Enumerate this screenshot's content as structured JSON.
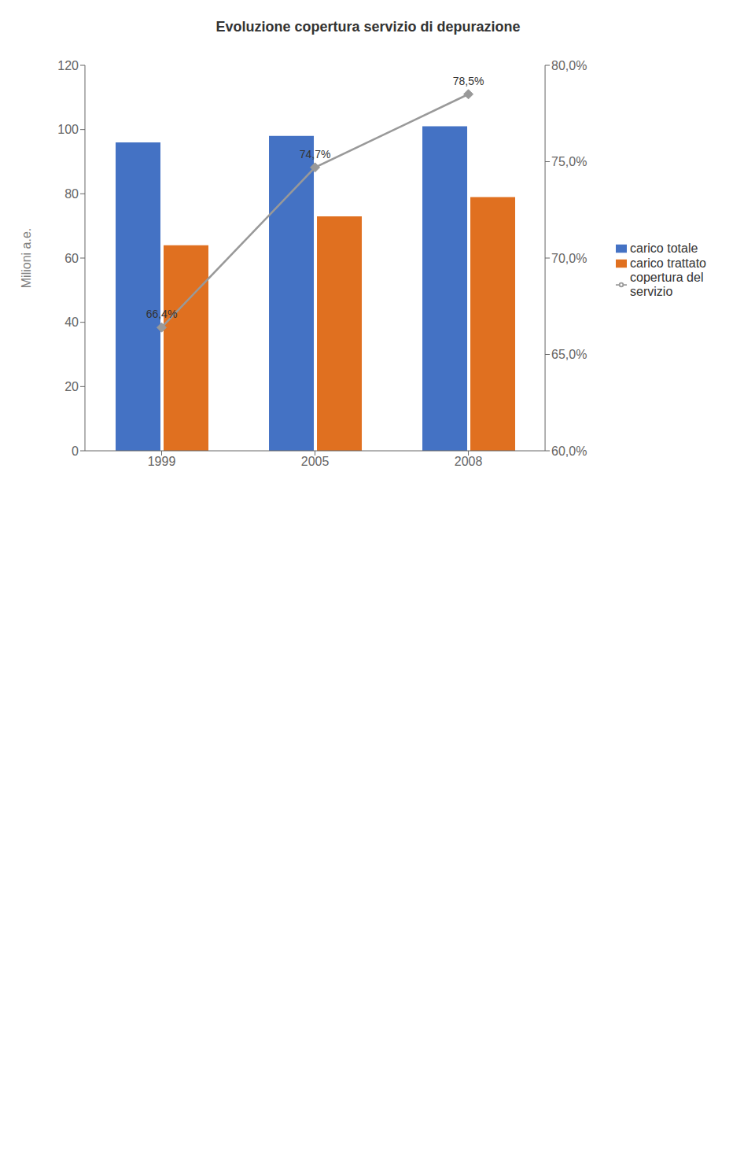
{
  "chart_data": {
    "type": "bar",
    "title": "Evoluzione copertura servizio di depurazione",
    "ylabel": "Milioni a.e.",
    "categories": [
      "1999",
      "2005",
      "2008"
    ],
    "series": [
      {
        "name": "carico totale",
        "color": "#4472C4",
        "values": [
          96,
          98,
          101
        ]
      },
      {
        "name": "carico trattato",
        "color": "#E07020",
        "values": [
          64,
          73,
          79
        ]
      },
      {
        "name": "copertura del\nservizio",
        "type": "line",
        "axis": "y2",
        "color": "#999999",
        "marker": "diamond",
        "values": [
          66.4,
          74.7,
          78.5
        ],
        "data_labels": true,
        "value_labels": [
          "66,4%",
          "74,7%",
          "78,5%"
        ]
      }
    ],
    "ylim": [
      0,
      120
    ],
    "yticks": [
      0,
      20,
      40,
      60,
      80,
      100,
      120
    ],
    "y2lim": [
      60.0,
      80.0
    ],
    "y2ticks": [
      {
        "value": 60.0,
        "label": "60,0%"
      },
      {
        "value": 65.0,
        "label": "65,0%"
      },
      {
        "value": 70.0,
        "label": "70,0%"
      },
      {
        "value": 75.0,
        "label": "75,0%"
      },
      {
        "value": 80.0,
        "label": "80,0%"
      }
    ],
    "grid": false,
    "legend": "right"
  }
}
